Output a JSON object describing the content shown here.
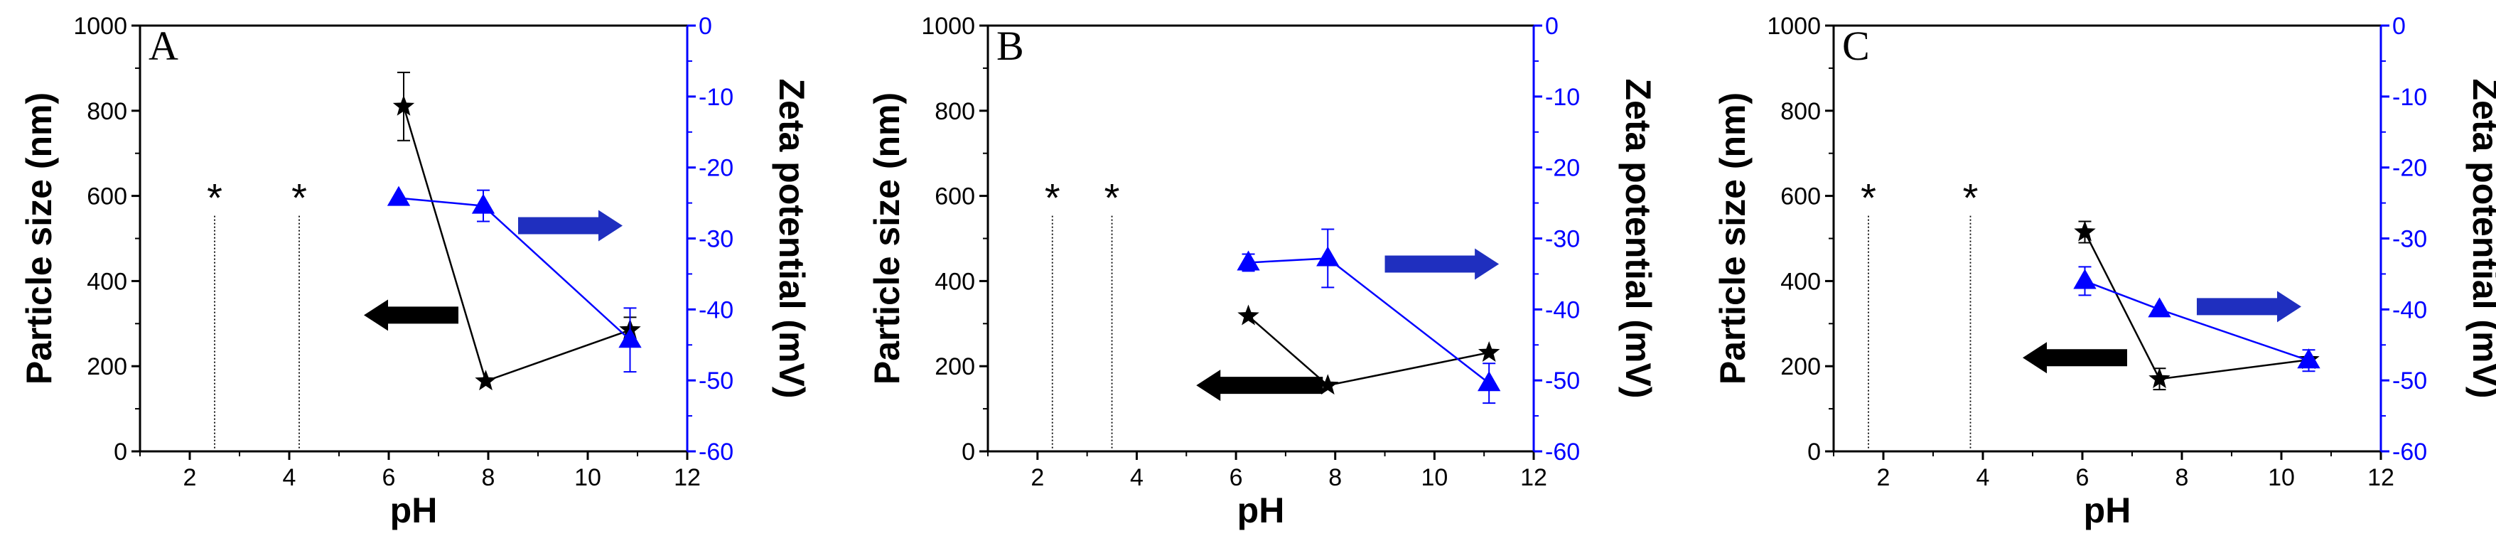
{
  "chart_data": [
    {
      "type": "line",
      "panel": "A",
      "xlabel": "pH",
      "ylabel_left": "Particle size (nm)",
      "ylabel_right": "Zeta potential (mV)",
      "xlim": [
        1,
        12
      ],
      "ylim_left": [
        0,
        1000
      ],
      "ylim_right": [
        -60,
        0
      ],
      "xticks": [
        2,
        4,
        6,
        8,
        10,
        12
      ],
      "yticks_left": [
        0,
        200,
        400,
        600,
        800,
        1000
      ],
      "yticks_right": [
        0,
        -10,
        -20,
        -30,
        -40,
        -50,
        -60
      ],
      "asterisk_marker": "*",
      "asterisks": [
        {
          "x": 2.5,
          "y": 620
        },
        {
          "x": 4.2,
          "y": 620
        }
      ],
      "arrows": [
        {
          "series": "Particle size",
          "direction": "left",
          "x_from": 7.4,
          "x_to": 5.5,
          "y": 320,
          "axis": "left"
        },
        {
          "series": "Zeta potential",
          "direction": "right",
          "x_from": 8.6,
          "x_to": 10.7,
          "y": 530,
          "axis": "left"
        }
      ],
      "series": [
        {
          "name": "Particle size",
          "axis": "left",
          "color": "#000000",
          "marker": "star",
          "x": [
            6.3,
            7.95,
            10.85
          ],
          "y": [
            810,
            165,
            285
          ],
          "err": [
            80,
            0,
            30
          ]
        },
        {
          "name": "Zeta potential",
          "axis": "right",
          "color": "#0000ff",
          "marker": "triangle",
          "x": [
            6.2,
            7.9,
            10.85
          ],
          "y": [
            -24.3,
            -25.4,
            -44.3
          ],
          "err": [
            0,
            2.2,
            4.5
          ]
        }
      ]
    },
    {
      "type": "line",
      "panel": "B",
      "xlabel": "pH",
      "ylabel_left": "Particle size (nm)",
      "ylabel_right": "Zeta potential (mV)",
      "xlim": [
        1,
        12
      ],
      "ylim_left": [
        0,
        1000
      ],
      "ylim_right": [
        -60,
        0
      ],
      "xticks": [
        2,
        4,
        6,
        8,
        10,
        12
      ],
      "yticks_left": [
        0,
        200,
        400,
        600,
        800,
        1000
      ],
      "yticks_right": [
        0,
        -10,
        -20,
        -30,
        -40,
        -50,
        -60
      ],
      "asterisk_marker": "*",
      "asterisks": [
        {
          "x": 2.3,
          "y": 620
        },
        {
          "x": 3.5,
          "y": 620
        }
      ],
      "arrows": [
        {
          "series": "Particle size",
          "direction": "left",
          "x_from": 7.75,
          "x_to": 5.2,
          "y": 155,
          "axis": "left"
        },
        {
          "series": "Zeta potential",
          "direction": "right",
          "x_from": 9.0,
          "x_to": 11.3,
          "y": 440,
          "axis": "left"
        }
      ],
      "series": [
        {
          "name": "Particle size",
          "axis": "left",
          "color": "#000000",
          "marker": "star",
          "x": [
            6.25,
            7.85,
            11.1
          ],
          "y": [
            318,
            155,
            232
          ],
          "err": [
            0,
            0,
            0
          ]
        },
        {
          "name": "Zeta potential",
          "axis": "right",
          "color": "#0000ff",
          "marker": "triangle",
          "x": [
            6.25,
            7.85,
            11.1
          ],
          "y": [
            -33.4,
            -32.8,
            -50.4
          ],
          "err": [
            1.2,
            4.1,
            2.8
          ]
        }
      ]
    },
    {
      "type": "line",
      "panel": "C",
      "xlabel": "pH",
      "ylabel_left": "Particle size (nm)",
      "ylabel_right": "Zeta potential (mV)",
      "xlim": [
        1,
        12
      ],
      "ylim_left": [
        0,
        1000
      ],
      "ylim_right": [
        -60,
        0
      ],
      "xticks": [
        2,
        4,
        6,
        8,
        10,
        12
      ],
      "yticks_left": [
        0,
        200,
        400,
        600,
        800,
        1000
      ],
      "yticks_right": [
        0,
        -10,
        -20,
        -30,
        -40,
        -50,
        -60
      ],
      "asterisk_marker": "*",
      "asterisks": [
        {
          "x": 1.7,
          "y": 620
        },
        {
          "x": 3.75,
          "y": 620
        }
      ],
      "arrows": [
        {
          "series": "Particle size",
          "direction": "left",
          "x_from": 6.9,
          "x_to": 4.8,
          "y": 220,
          "axis": "left"
        },
        {
          "series": "Zeta potential",
          "direction": "right",
          "x_from": 8.3,
          "x_to": 10.4,
          "y": 340,
          "axis": "left"
        }
      ],
      "series": [
        {
          "name": "Particle size",
          "axis": "left",
          "color": "#000000",
          "marker": "star",
          "x": [
            6.05,
            7.55,
            10.55
          ],
          "y": [
            515,
            170,
            215
          ],
          "err": [
            25,
            25,
            0
          ]
        },
        {
          "name": "Zeta potential",
          "axis": "right",
          "color": "#0000ff",
          "marker": "triangle",
          "x": [
            6.05,
            7.55,
            10.55
          ],
          "y": [
            -36.0,
            -40.0,
            -47.2
          ],
          "err": [
            2.0,
            0,
            1.5
          ]
        }
      ]
    }
  ]
}
